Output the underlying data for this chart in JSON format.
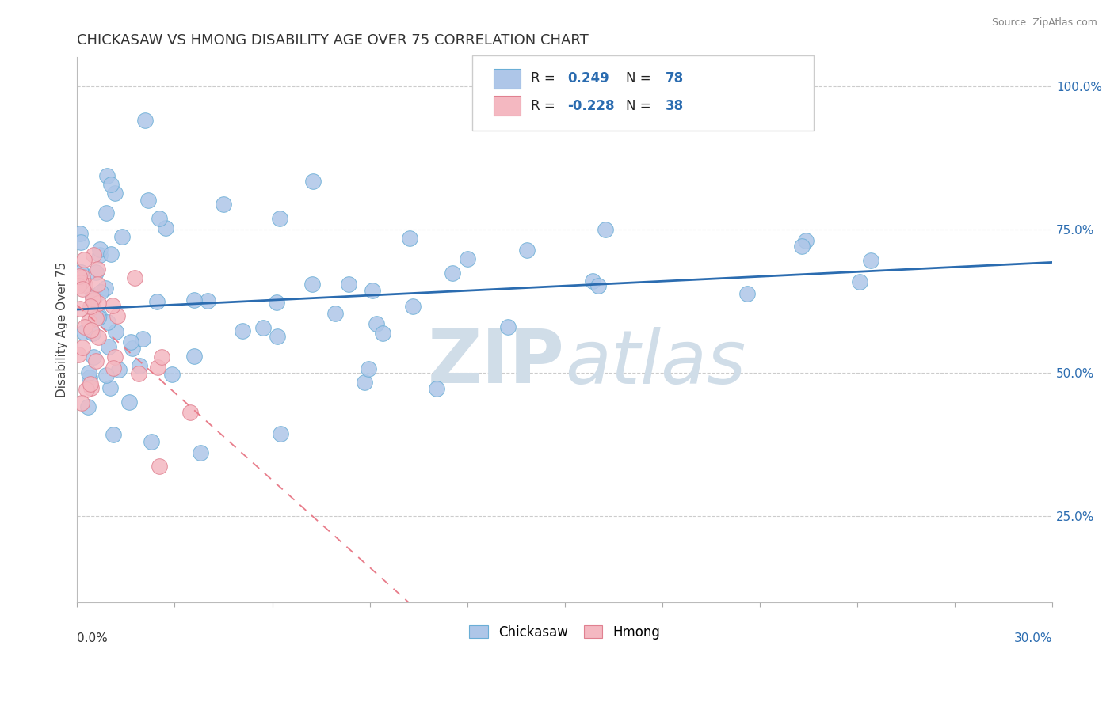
{
  "title": "CHICKASAW VS HMONG DISABILITY AGE OVER 75 CORRELATION CHART",
  "source": "Source: ZipAtlas.com",
  "ylabel": "Disability Age Over 75",
  "yticks": [
    0.25,
    0.5,
    0.75,
    1.0
  ],
  "ytick_labels": [
    "25.0%",
    "50.0%",
    "75.0%",
    "100.0%"
  ],
  "xlim": [
    0.0,
    0.3
  ],
  "ylim": [
    0.1,
    1.05
  ],
  "chickasaw_R": 0.249,
  "chickasaw_N": 78,
  "hmong_R": -0.228,
  "hmong_N": 38,
  "chickasaw_color": "#aec6e8",
  "chickasaw_edge": "#6aaed6",
  "hmong_color": "#f4b8c1",
  "hmong_edge": "#e08090",
  "trendline_chickasaw_color": "#2b6cb0",
  "trendline_hmong_color": "#e87c8a",
  "watermark_color": "#d0dde8",
  "legend_box_chickasaw": "#aec6e8",
  "legend_box_hmong": "#f4b8c1",
  "blue_text_color": "#2b6cb0",
  "title_color": "#333333",
  "source_color": "#888888"
}
